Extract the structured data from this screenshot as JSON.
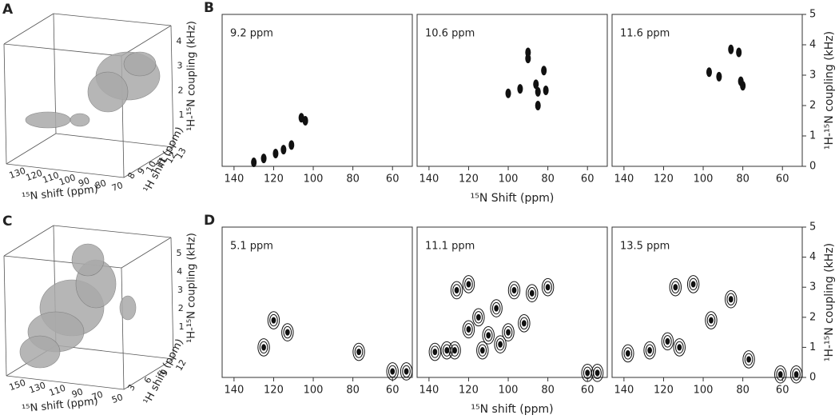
{
  "chart_data": [
    {
      "type": "volume",
      "label": "A",
      "xlabel": "¹⁵N shift (ppm)",
      "ylabel": "¹H shift (ppm)",
      "zlabel": "¹H-¹⁵N coupling (kHz)",
      "xticks": [
        130,
        120,
        110,
        100,
        90,
        80,
        70
      ],
      "yticks": [
        8,
        9,
        10,
        11,
        12,
        13
      ],
      "zticks": [
        1,
        2,
        3,
        4
      ]
    },
    {
      "type": "contour",
      "label": "B",
      "xlabel": "¹⁵N Shift (ppm)",
      "ylabel": "¹H-¹⁵N coupling (kHz)",
      "xlim": [
        146,
        50
      ],
      "ylim": [
        0,
        5
      ],
      "xticks": [
        140,
        120,
        100,
        80,
        60
      ],
      "yticks": [
        0,
        1,
        2,
        3,
        4,
        5
      ],
      "panels": [
        {
          "title": "9.2 ppm",
          "x": [
            106,
            104,
            111,
            115,
            119,
            125,
            130
          ],
          "y": [
            1.6,
            1.5,
            0.7,
            0.55,
            0.42,
            0.26,
            0.13
          ]
        },
        {
          "title": "10.6 ppm",
          "x": [
            90,
            90,
            82,
            94,
            86,
            81,
            85,
            85,
            100
          ],
          "y": [
            3.75,
            3.55,
            3.15,
            2.55,
            2.7,
            2.5,
            2.45,
            2.0,
            2.4
          ]
        },
        {
          "title": "11.6 ppm",
          "x": [
            97,
            92,
            86,
            82,
            81,
            80
          ],
          "y": [
            3.1,
            2.95,
            3.85,
            3.75,
            2.8,
            2.65
          ]
        }
      ]
    },
    {
      "type": "volume",
      "label": "C",
      "xlabel": "¹⁵N shift (ppm)",
      "ylabel": "¹H shift (ppm)",
      "zlabel": "¹H-¹⁵N coupling (kHz)",
      "xticks": [
        150,
        130,
        110,
        90,
        70,
        50
      ],
      "yticks": [
        3,
        6,
        9,
        12
      ],
      "zticks": [
        1,
        2,
        3,
        4,
        5
      ]
    },
    {
      "type": "contour",
      "label": "D",
      "xlabel": "¹⁵N shift (ppm)",
      "ylabel": "¹H-¹⁵N coupling (kHz)",
      "xlim": [
        146,
        50
      ],
      "ylim": [
        0,
        5
      ],
      "xticks": [
        140,
        120,
        100,
        80,
        60
      ],
      "yticks": [
        0,
        1,
        2,
        3,
        4,
        5
      ],
      "panels": [
        {
          "title": "5.1 ppm",
          "x": [
            125,
            120,
            113,
            77,
            60,
            53
          ],
          "y": [
            1.0,
            1.9,
            1.5,
            0.85,
            0.2,
            0.2
          ]
        },
        {
          "title": "11.1 ppm",
          "x": [
            137,
            131,
            127,
            120,
            115,
            110,
            106,
            100,
            97,
            92,
            88,
            80,
            126,
            120,
            113,
            104,
            60,
            55
          ],
          "y": [
            0.85,
            0.9,
            0.9,
            1.6,
            2.0,
            1.4,
            2.3,
            1.5,
            2.9,
            1.8,
            2.8,
            3.0,
            2.9,
            3.1,
            0.9,
            1.1,
            0.15,
            0.15
          ]
        },
        {
          "title": "13.5 ppm",
          "x": [
            138,
            127,
            118,
            114,
            112,
            105,
            96,
            86,
            77,
            61,
            53
          ],
          "y": [
            0.8,
            0.9,
            1.2,
            3.0,
            1.0,
            3.1,
            1.9,
            2.6,
            0.6,
            0.1,
            0.1
          ]
        }
      ]
    }
  ]
}
